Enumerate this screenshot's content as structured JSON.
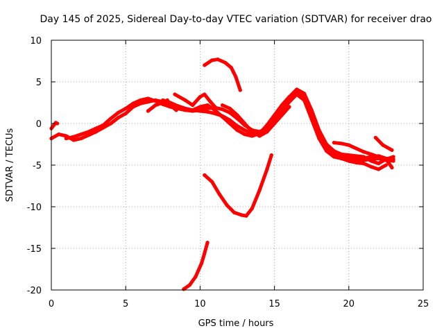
{
  "chart_data": {
    "type": "line",
    "title": "Day 145 of 2025, Sidereal Day-to-day VTEC variation (SDTVAR) for receiver drao",
    "xlabel": "GPS time / hours",
    "ylabel": "SDTVAR / TECUs",
    "xlim": [
      0,
      25
    ],
    "ylim": [
      -20,
      10
    ],
    "xticks": [
      0,
      5,
      10,
      15,
      20,
      25
    ],
    "yticks": [
      -20,
      -15,
      -10,
      -5,
      0,
      5,
      10
    ],
    "xtick_labels": [
      "0",
      "5",
      "10",
      "15",
      "20",
      "25"
    ],
    "ytick_labels": [
      "-20",
      "-15",
      "-10",
      "-5",
      "0",
      "5",
      "10"
    ],
    "grid": true,
    "color": "#ff0000",
    "series": [
      {
        "name": "track-1",
        "points": [
          [
            0.0,
            -0.6
          ],
          [
            0.3,
            0.1
          ],
          [
            0.4,
            0.0
          ]
        ]
      },
      {
        "name": "track-2",
        "points": [
          [
            0.0,
            -1.8
          ],
          [
            0.5,
            -1.3
          ],
          [
            1.0,
            -1.5
          ],
          [
            1.5,
            -2.0
          ],
          [
            2.0,
            -1.8
          ],
          [
            2.5,
            -1.4
          ],
          [
            3.0,
            -1.0
          ],
          [
            3.5,
            -0.5
          ],
          [
            4.0,
            0.0
          ],
          [
            4.5,
            0.7
          ],
          [
            5.0,
            1.2
          ],
          [
            5.5,
            2.0
          ],
          [
            6.0,
            2.4
          ],
          [
            6.5,
            2.6
          ],
          [
            7.0,
            2.8
          ],
          [
            7.5,
            2.6
          ],
          [
            8.0,
            2.4
          ],
          [
            8.5,
            2.1
          ],
          [
            9.0,
            1.8
          ],
          [
            9.5,
            1.6
          ],
          [
            10.0,
            1.5
          ],
          [
            10.5,
            1.4
          ],
          [
            11.0,
            1.2
          ],
          [
            11.5,
            0.9
          ],
          [
            12.0,
            0.4
          ],
          [
            12.5,
            -0.3
          ],
          [
            13.0,
            -0.8
          ],
          [
            13.5,
            -1.2
          ],
          [
            14.0,
            -1.0
          ],
          [
            14.5,
            -0.6
          ],
          [
            15.0,
            0.3
          ],
          [
            15.5,
            1.5
          ],
          [
            16.0,
            2.6
          ],
          [
            16.5,
            3.5
          ],
          [
            17.0,
            2.8
          ],
          [
            17.5,
            0.5
          ],
          [
            18.0,
            -1.8
          ],
          [
            18.5,
            -3.3
          ],
          [
            19.0,
            -4.0
          ],
          [
            19.5,
            -4.2
          ],
          [
            20.0,
            -4.2
          ],
          [
            20.5,
            -4.3
          ],
          [
            21.0,
            -4.4
          ],
          [
            21.5,
            -4.3
          ],
          [
            22.0,
            -4.2
          ],
          [
            22.5,
            -4.4
          ],
          [
            23.0,
            -4.5
          ]
        ]
      },
      {
        "name": "track-3",
        "points": [
          [
            1.0,
            -1.8
          ],
          [
            1.5,
            -1.6
          ],
          [
            2.0,
            -1.3
          ],
          [
            2.5,
            -1.0
          ],
          [
            3.0,
            -0.6
          ],
          [
            3.5,
            -0.2
          ],
          [
            4.0,
            0.6
          ],
          [
            4.5,
            1.3
          ],
          [
            5.0,
            1.8
          ],
          [
            5.5,
            2.4
          ],
          [
            6.0,
            2.8
          ],
          [
            6.5,
            3.0
          ],
          [
            7.0,
            2.7
          ],
          [
            7.5,
            2.3
          ],
          [
            8.0,
            2.0
          ],
          [
            8.5,
            1.8
          ],
          [
            9.0,
            1.6
          ],
          [
            9.5,
            1.5
          ],
          [
            10.0,
            1.6
          ],
          [
            10.5,
            1.8
          ],
          [
            11.0,
            1.9
          ],
          [
            11.5,
            1.7
          ],
          [
            12.0,
            1.3
          ],
          [
            12.5,
            0.6
          ],
          [
            13.0,
            -0.2
          ],
          [
            13.5,
            -0.8
          ],
          [
            14.0,
            -1.0
          ],
          [
            14.5,
            -0.5
          ],
          [
            15.0,
            0.8
          ],
          [
            15.5,
            2.0
          ],
          [
            16.0,
            3.0
          ],
          [
            16.5,
            3.9
          ],
          [
            17.0,
            3.2
          ],
          [
            17.5,
            1.0
          ],
          [
            18.0,
            -1.3
          ],
          [
            18.5,
            -2.8
          ],
          [
            19.0,
            -3.8
          ],
          [
            19.5,
            -4.0
          ],
          [
            20.0,
            -4.0
          ],
          [
            20.5,
            -4.1
          ],
          [
            21.0,
            -4.2
          ],
          [
            21.5,
            -4.0
          ],
          [
            22.0,
            -3.9
          ],
          [
            22.5,
            -4.2
          ],
          [
            23.0,
            -4.3
          ]
        ]
      },
      {
        "name": "track-4",
        "points": [
          [
            7.5,
            2.8
          ],
          [
            8.0,
            2.5
          ],
          [
            8.5,
            2.1
          ],
          [
            9.0,
            1.8
          ],
          [
            9.5,
            1.6
          ],
          [
            10.0,
            2.0
          ],
          [
            10.5,
            2.2
          ],
          [
            11.0,
            1.6
          ],
          [
            11.5,
            0.8
          ],
          [
            12.0,
            0.0
          ],
          [
            12.5,
            -0.8
          ],
          [
            13.0,
            -1.3
          ],
          [
            13.5,
            -1.5
          ],
          [
            14.0,
            -1.2
          ],
          [
            14.5,
            -0.2
          ],
          [
            15.0,
            1.0
          ],
          [
            15.5,
            2.2
          ],
          [
            16.0,
            3.2
          ],
          [
            16.5,
            4.1
          ],
          [
            17.0,
            3.6
          ],
          [
            17.5,
            1.6
          ],
          [
            18.0,
            -0.8
          ],
          [
            18.5,
            -2.5
          ],
          [
            19.0,
            -3.3
          ],
          [
            19.5,
            -3.7
          ],
          [
            20.0,
            -3.8
          ],
          [
            20.5,
            -3.9
          ],
          [
            21.0,
            -4.0
          ],
          [
            21.5,
            -4.5
          ],
          [
            22.0,
            -4.8
          ],
          [
            22.5,
            -4.3
          ],
          [
            23.0,
            -4.0
          ]
        ]
      },
      {
        "name": "track-5",
        "points": [
          [
            8.3,
            3.5
          ],
          [
            9.0,
            2.8
          ],
          [
            9.5,
            2.2
          ],
          [
            10.0,
            3.2
          ],
          [
            10.3,
            3.5
          ],
          [
            10.7,
            2.6
          ],
          [
            11.0,
            2.0
          ]
        ]
      },
      {
        "name": "track-6",
        "points": [
          [
            7.8,
            2.8
          ],
          [
            8.0,
            2.2
          ],
          [
            8.4,
            1.6
          ]
        ]
      },
      {
        "name": "track-7",
        "points": [
          [
            6.5,
            1.5
          ],
          [
            7.0,
            2.2
          ],
          [
            7.5,
            2.5
          ]
        ]
      },
      {
        "name": "track-8",
        "points": [
          [
            11.5,
            2.2
          ],
          [
            12.0,
            1.8
          ],
          [
            12.5,
            1.0
          ],
          [
            13.0,
            0.0
          ],
          [
            13.5,
            -1.0
          ],
          [
            14.0,
            -1.5
          ],
          [
            14.5,
            -1.0
          ],
          [
            15.0,
            0.0
          ],
          [
            15.5,
            1.0
          ],
          [
            16.0,
            2.0
          ]
        ]
      },
      {
        "name": "track-9",
        "points": [
          [
            16.0,
            3.0
          ],
          [
            16.5,
            3.8
          ],
          [
            17.0,
            3.5
          ],
          [
            17.5,
            1.5
          ],
          [
            18.0,
            -1.0
          ],
          [
            18.5,
            -2.8
          ],
          [
            19.0,
            -3.5
          ],
          [
            19.5,
            -4.2
          ],
          [
            20.0,
            -4.5
          ],
          [
            20.5,
            -4.7
          ],
          [
            21.0,
            -4.8
          ],
          [
            21.5,
            -5.2
          ],
          [
            22.0,
            -5.5
          ],
          [
            22.5,
            -5.0
          ]
        ]
      },
      {
        "name": "track-10",
        "points": [
          [
            19.0,
            -2.3
          ],
          [
            19.5,
            -2.4
          ],
          [
            20.0,
            -2.6
          ],
          [
            20.5,
            -3.0
          ],
          [
            21.0,
            -3.4
          ],
          [
            21.5,
            -3.7
          ],
          [
            22.0,
            -4.0
          ],
          [
            22.5,
            -4.3
          ],
          [
            22.9,
            -5.3
          ]
        ]
      },
      {
        "name": "track-11",
        "points": [
          [
            21.8,
            -1.7
          ],
          [
            22.3,
            -2.6
          ],
          [
            22.9,
            -3.2
          ]
        ]
      },
      {
        "name": "track-12",
        "points": [
          [
            10.3,
            7.0
          ],
          [
            10.8,
            7.6
          ],
          [
            11.2,
            7.7
          ],
          [
            11.7,
            7.3
          ],
          [
            12.1,
            6.7
          ],
          [
            12.4,
            5.6
          ],
          [
            12.7,
            4.0
          ]
        ]
      },
      {
        "name": "track-13",
        "points": [
          [
            10.3,
            -6.2
          ],
          [
            10.8,
            -7.0
          ],
          [
            11.3,
            -8.5
          ],
          [
            11.8,
            -9.8
          ],
          [
            12.3,
            -10.7
          ],
          [
            12.8,
            -11.0
          ],
          [
            13.1,
            -11.1
          ],
          [
            13.5,
            -10.2
          ],
          [
            14.0,
            -8.0
          ],
          [
            14.5,
            -5.5
          ],
          [
            14.8,
            -3.8
          ]
        ]
      },
      {
        "name": "track-14",
        "points": [
          [
            8.9,
            -19.9
          ],
          [
            9.3,
            -19.4
          ],
          [
            9.7,
            -18.4
          ],
          [
            10.1,
            -16.8
          ],
          [
            10.3,
            -15.6
          ],
          [
            10.5,
            -14.3
          ]
        ]
      }
    ]
  }
}
